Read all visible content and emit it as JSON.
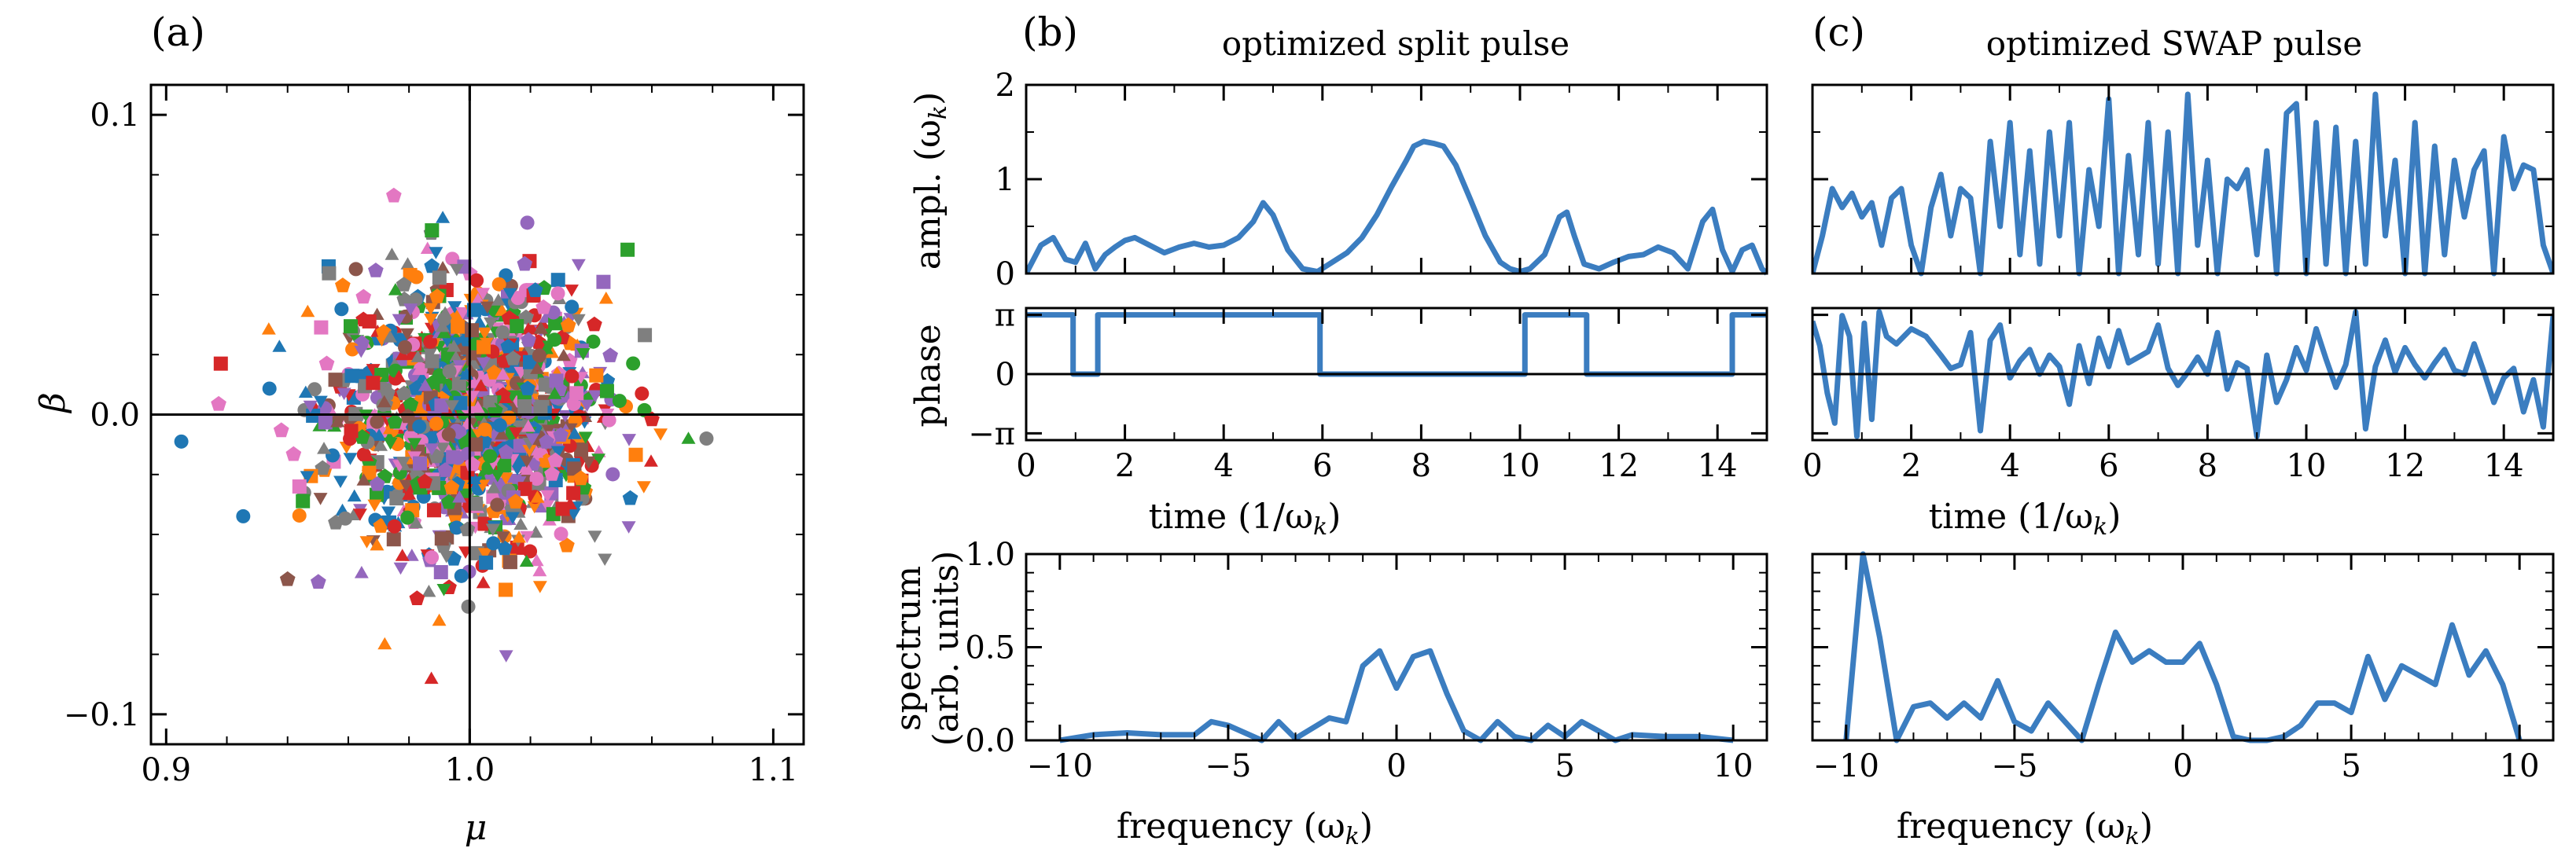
{
  "panel_letters": [
    "(a)",
    "(b)",
    "(c)"
  ],
  "titles": {
    "b": "optimized split pulse",
    "c": "optimized SWAP pulse"
  },
  "labels": {
    "a_x": "μ",
    "a_y": "β",
    "ampl": "ampl. (ω",
    "ampl_sub": "k",
    "ampl_end": ")",
    "phase": "phase",
    "time": "time (1/ω",
    "time_sub": "k",
    "time_end": ")",
    "spectrum_1": "spectrum",
    "spectrum_2": "(arb. units)",
    "freq": "frequency (ω",
    "freq_sub": "k",
    "freq_end": ")"
  },
  "colors": {
    "line": "#3b7dc0",
    "scatter": [
      "#1f77b4",
      "#ff7f0e",
      "#2ca02c",
      "#d62728",
      "#9467bd",
      "#8c564b",
      "#e377c2",
      "#7f7f7f"
    ]
  },
  "chart_data": [
    {
      "id": "a",
      "type": "scatter",
      "xlabel": "μ",
      "ylabel": "β",
      "xlim": [
        0.895,
        1.11
      ],
      "ylim": [
        -0.11,
        0.11
      ],
      "xticks": [
        "0.9",
        "1.0",
        "1.1"
      ],
      "xtick_values": [
        0.9,
        1.0,
        1.1
      ],
      "yticks": [
        "−0.1",
        "0.0",
        "0.1"
      ],
      "ytick_values": [
        -0.1,
        0.0,
        0.1
      ],
      "reference_lines": {
        "x": 1.0,
        "y": 0.0
      },
      "distribution": {
        "center": [
          1.0,
          0.0
        ],
        "std_mu": 0.022,
        "std_beta": 0.022,
        "n_points": 1400
      },
      "outliers": [
        [
          0.905,
          -0.009
        ],
        [
          0.918,
          0.017
        ],
        [
          0.975,
          0.073
        ],
        [
          0.972,
          -0.077
        ],
        [
          1.012,
          -0.08
        ],
        [
          1.078,
          -0.008
        ],
        [
          1.052,
          0.055
        ],
        [
          0.94,
          -0.055
        ]
      ]
    },
    {
      "id": "b_ampl",
      "type": "line",
      "ylabel": "ampl. (ωk)",
      "xlim": [
        0,
        15
      ],
      "ylim": [
        0,
        2
      ],
      "yticks": [
        "0",
        "1",
        "2"
      ],
      "ytick_values": [
        0,
        1,
        2
      ],
      "x": [
        0,
        0.3,
        0.55,
        0.8,
        1.0,
        1.2,
        1.4,
        1.6,
        1.8,
        2.0,
        2.2,
        2.5,
        2.8,
        3.1,
        3.4,
        3.7,
        4.0,
        4.3,
        4.6,
        4.8,
        5.0,
        5.3,
        5.6,
        5.9,
        6.2,
        6.5,
        6.8,
        7.1,
        7.4,
        7.7,
        7.85,
        8.05,
        8.25,
        8.45,
        8.7,
        9.0,
        9.3,
        9.6,
        9.8,
        10.0,
        10.2,
        10.5,
        10.8,
        10.95,
        11.1,
        11.3,
        11.6,
        11.9,
        12.2,
        12.5,
        12.8,
        13.1,
        13.4,
        13.7,
        13.9,
        14.1,
        14.3,
        14.5,
        14.7,
        14.9,
        15.0
      ],
      "y": [
        0.0,
        0.3,
        0.38,
        0.15,
        0.12,
        0.32,
        0.05,
        0.2,
        0.28,
        0.35,
        0.38,
        0.3,
        0.22,
        0.28,
        0.32,
        0.28,
        0.3,
        0.38,
        0.55,
        0.75,
        0.62,
        0.25,
        0.05,
        0.02,
        0.12,
        0.22,
        0.38,
        0.62,
        0.92,
        1.2,
        1.35,
        1.4,
        1.38,
        1.35,
        1.15,
        0.78,
        0.4,
        0.12,
        0.05,
        0.02,
        0.05,
        0.2,
        0.6,
        0.65,
        0.4,
        0.1,
        0.05,
        0.12,
        0.18,
        0.2,
        0.28,
        0.22,
        0.05,
        0.55,
        0.68,
        0.25,
        0.02,
        0.25,
        0.3,
        0.05,
        0.0
      ]
    },
    {
      "id": "b_phase",
      "type": "line",
      "ylabel": "phase",
      "xlim": [
        0,
        15
      ],
      "ylim": [
        -3.5,
        3.5
      ],
      "yticks": [
        "π",
        "0",
        "−π"
      ],
      "ytick_values": [
        3.14159,
        0,
        -3.14159
      ],
      "x": [
        0,
        0.95,
        0.95,
        1.45,
        1.45,
        5.95,
        5.95,
        10.1,
        10.1,
        11.35,
        11.35,
        14.3,
        14.3,
        15.0
      ],
      "y": [
        3.14159,
        3.14159,
        0,
        0,
        3.14159,
        3.14159,
        0,
        0,
        3.14159,
        3.14159,
        0,
        0,
        3.14159,
        3.14159
      ],
      "xticks": [
        "0",
        "2",
        "4",
        "6",
        "8",
        "10",
        "12",
        "14"
      ],
      "xtick_values": [
        0,
        2,
        4,
        6,
        8,
        10,
        12,
        14
      ],
      "xlabel": "time (1/ωk)"
    },
    {
      "id": "b_spectrum",
      "type": "line",
      "ylabel": "spectrum (arb. units)",
      "xlim": [
        -11,
        11
      ],
      "ylim": [
        0,
        1
      ],
      "yticks": [
        "0.0",
        "0.5",
        "1.0"
      ],
      "ytick_values": [
        0,
        0.5,
        1.0
      ],
      "xticks": [
        "−10",
        "−5",
        "0",
        "5",
        "10"
      ],
      "xtick_values": [
        -10,
        -5,
        0,
        5,
        10
      ],
      "xlabel": "frequency (ωk)",
      "x": [
        -10,
        -9,
        -8,
        -7,
        -6,
        -5.5,
        -5,
        -4,
        -3.5,
        -3,
        -2,
        -1.5,
        -1,
        -0.5,
        0,
        0.5,
        1,
        1.5,
        2,
        2.5,
        3,
        3.5,
        4,
        4.5,
        5,
        5.5,
        6,
        6.5,
        7,
        8,
        9,
        10
      ],
      "y": [
        0.0,
        0.03,
        0.04,
        0.03,
        0.03,
        0.1,
        0.08,
        0.0,
        0.1,
        0.01,
        0.12,
        0.1,
        0.4,
        0.48,
        0.28,
        0.45,
        0.48,
        0.25,
        0.05,
        0.0,
        0.1,
        0.02,
        0.0,
        0.08,
        0.02,
        0.1,
        0.05,
        0.0,
        0.03,
        0.02,
        0.02,
        0.0
      ]
    },
    {
      "id": "c_ampl",
      "type": "line",
      "ylabel": "",
      "xlim": [
        0,
        15
      ],
      "ylim": [
        0,
        2
      ],
      "x": [
        0,
        0.2,
        0.4,
        0.6,
        0.8,
        1.0,
        1.2,
        1.4,
        1.6,
        1.8,
        2.0,
        2.2,
        2.4,
        2.6,
        2.8,
        3.0,
        3.2,
        3.4,
        3.6,
        3.8,
        4.0,
        4.2,
        4.4,
        4.6,
        4.8,
        5.0,
        5.2,
        5.4,
        5.6,
        5.8,
        6.0,
        6.2,
        6.4,
        6.6,
        6.8,
        7.0,
        7.2,
        7.4,
        7.6,
        7.8,
        8.0,
        8.2,
        8.4,
        8.6,
        8.8,
        9.0,
        9.2,
        9.4,
        9.6,
        9.8,
        10.0,
        10.2,
        10.4,
        10.6,
        10.8,
        11.0,
        11.2,
        11.4,
        11.6,
        11.8,
        12.0,
        12.2,
        12.4,
        12.6,
        12.8,
        13.0,
        13.2,
        13.4,
        13.6,
        13.8,
        14.0,
        14.2,
        14.4,
        14.6,
        14.8,
        15.0
      ],
      "y": [
        0.0,
        0.4,
        0.9,
        0.7,
        0.85,
        0.6,
        0.75,
        0.3,
        0.8,
        0.9,
        0.3,
        0.0,
        0.7,
        1.05,
        0.4,
        0.9,
        0.8,
        0.0,
        1.4,
        0.5,
        1.6,
        0.2,
        1.3,
        0.1,
        1.5,
        0.4,
        1.6,
        0.0,
        1.1,
        0.5,
        1.85,
        0.0,
        1.25,
        0.2,
        1.6,
        0.1,
        1.5,
        0.0,
        1.9,
        0.3,
        1.2,
        0.0,
        1.0,
        0.9,
        1.1,
        0.2,
        1.3,
        0.0,
        1.7,
        1.8,
        0.0,
        1.6,
        0.1,
        1.55,
        0.0,
        1.4,
        0.1,
        1.9,
        0.4,
        1.2,
        0.0,
        1.6,
        0.0,
        1.35,
        0.2,
        1.2,
        0.6,
        1.1,
        1.3,
        0.0,
        1.45,
        0.9,
        1.15,
        1.1,
        0.3,
        0.0
      ]
    },
    {
      "id": "c_phase",
      "type": "line",
      "ylabel": "",
      "xlim": [
        0,
        15
      ],
      "ylim": [
        -3.5,
        3.5
      ],
      "xticks": [
        "0",
        "2",
        "4",
        "6",
        "8",
        "10",
        "12",
        "14"
      ],
      "xtick_values": [
        0,
        2,
        4,
        6,
        8,
        10,
        12,
        14
      ],
      "xlabel": "time (1/ωk)",
      "x": [
        0,
        0.15,
        0.3,
        0.45,
        0.6,
        0.75,
        0.9,
        1.05,
        1.2,
        1.35,
        1.5,
        1.7,
        2.0,
        2.3,
        2.6,
        2.8,
        3.0,
        3.2,
        3.4,
        3.6,
        3.8,
        4.0,
        4.2,
        4.4,
        4.6,
        4.8,
        5.0,
        5.2,
        5.4,
        5.6,
        5.8,
        6.0,
        6.2,
        6.4,
        6.6,
        6.8,
        7.0,
        7.2,
        7.4,
        7.6,
        7.8,
        8.0,
        8.2,
        8.4,
        8.6,
        8.8,
        9.0,
        9.2,
        9.4,
        9.6,
        9.8,
        10.0,
        10.2,
        10.4,
        10.6,
        10.8,
        11.0,
        11.2,
        11.4,
        11.6,
        11.8,
        12.0,
        12.2,
        12.4,
        12.6,
        12.8,
        13.0,
        13.2,
        13.4,
        13.6,
        13.8,
        14.0,
        14.2,
        14.4,
        14.6,
        14.8,
        15.0
      ],
      "y": [
        2.8,
        1.5,
        -1.0,
        -2.6,
        3.1,
        2.0,
        -3.3,
        2.7,
        -2.4,
        3.3,
        2.0,
        1.6,
        2.4,
        2.0,
        1.0,
        0.3,
        0.5,
        2.2,
        -3.0,
        1.8,
        2.6,
        -0.2,
        0.7,
        1.3,
        0.0,
        1.0,
        0.4,
        -1.6,
        1.5,
        -0.5,
        1.9,
        0.4,
        2.3,
        0.6,
        0.9,
        1.2,
        2.6,
        0.3,
        -0.6,
        0.1,
        0.9,
        0.0,
        2.2,
        -0.8,
        0.6,
        0.3,
        -3.3,
        1.0,
        -1.5,
        -0.3,
        1.4,
        0.2,
        2.4,
        0.8,
        -0.7,
        0.5,
        3.3,
        -2.9,
        0.4,
        1.8,
        0.1,
        1.4,
        0.5,
        -0.2,
        0.6,
        1.3,
        0.2,
        0.0,
        1.6,
        0.1,
        -1.5,
        -0.2,
        0.3,
        -2.0,
        -0.3,
        -2.8,
        3.1
      ]
    },
    {
      "id": "c_spectrum",
      "type": "line",
      "ylabel": "",
      "xlim": [
        -11,
        11
      ],
      "ylim": [
        0,
        1
      ],
      "xticks": [
        "−10",
        "−5",
        "0",
        "5",
        "10"
      ],
      "xtick_values": [
        -10,
        -5,
        0,
        5,
        10
      ],
      "xlabel": "frequency (ωk)",
      "x": [
        -10,
        -9.5,
        -9,
        -8.5,
        -8,
        -7.5,
        -7,
        -6.5,
        -6,
        -5.5,
        -5,
        -4.5,
        -4,
        -3.5,
        -3,
        -2.5,
        -2,
        -1.5,
        -1,
        -0.5,
        0,
        0.5,
        1,
        1.5,
        2,
        2.5,
        3,
        3.5,
        4,
        4.5,
        5,
        5.5,
        6,
        6.5,
        7,
        7.5,
        8,
        8.5,
        9,
        9.5,
        10
      ],
      "y": [
        0.0,
        1.0,
        0.55,
        0.0,
        0.18,
        0.2,
        0.12,
        0.2,
        0.12,
        0.32,
        0.1,
        0.05,
        0.2,
        0.1,
        0.0,
        0.3,
        0.58,
        0.42,
        0.48,
        0.42,
        0.42,
        0.52,
        0.3,
        0.02,
        0.0,
        0.0,
        0.02,
        0.08,
        0.2,
        0.2,
        0.15,
        0.45,
        0.22,
        0.4,
        0.35,
        0.3,
        0.62,
        0.35,
        0.48,
        0.3,
        0.0
      ]
    }
  ]
}
